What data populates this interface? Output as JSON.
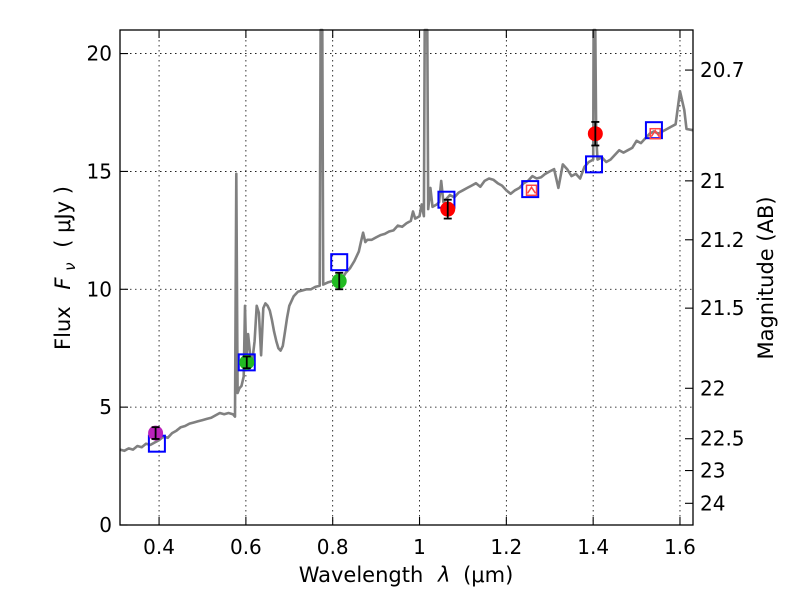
{
  "chart_data": {
    "type": "line",
    "xlabel": "Wavelength",
    "xlabel_symbol": "λ",
    "xlabel_unit": "(μm)",
    "ylabel": "Flux",
    "ylabel_symbol": "F",
    "ylabel_subscript": "ν",
    "ylabel_unit": "( μJy )",
    "y2label": "Magnitude (AB)",
    "xlim": [
      0.31,
      1.63
    ],
    "ylim": [
      0,
      21
    ],
    "xticks": [
      0.4,
      0.6,
      0.8,
      1.0,
      1.2,
      1.4,
      1.6
    ],
    "xtick_labels": [
      "0.4",
      "0.6",
      "0.8",
      "1",
      "1.2",
      "1.4",
      "1.6"
    ],
    "yticks": [
      0,
      5,
      10,
      15,
      20
    ],
    "ytick_labels": [
      "0",
      "5",
      "10",
      "15",
      "20"
    ],
    "y2ticks": [
      {
        "label": "20.7",
        "flux": 19.3
      },
      {
        "label": "21",
        "flux": 14.6
      },
      {
        "label": "21.2",
        "flux": 12.1
      },
      {
        "label": "21.5",
        "flux": 9.2
      },
      {
        "label": "22",
        "flux": 5.8
      },
      {
        "label": "22.5",
        "flux": 3.66
      },
      {
        "label": "23",
        "flux": 2.31
      },
      {
        "label": "24",
        "flux": 0.92
      }
    ],
    "grid": true,
    "colors": {
      "model": "#808080",
      "box": "#0000ff",
      "red_point": "#ff0000",
      "green_point": "#22bb22",
      "magenta_point": "#bb22bb",
      "errorbar": "#000000",
      "inner_box": "#ff4444"
    },
    "model_spectrum": [
      [
        0.31,
        3.2
      ],
      [
        0.32,
        3.15
      ],
      [
        0.33,
        3.25
      ],
      [
        0.34,
        3.2
      ],
      [
        0.35,
        3.35
      ],
      [
        0.36,
        3.3
      ],
      [
        0.37,
        3.45
      ],
      [
        0.38,
        3.4
      ],
      [
        0.39,
        3.5
      ],
      [
        0.4,
        3.6
      ],
      [
        0.41,
        3.75
      ],
      [
        0.42,
        3.7
      ],
      [
        0.43,
        3.9
      ],
      [
        0.44,
        4.0
      ],
      [
        0.45,
        4.15
      ],
      [
        0.46,
        4.2
      ],
      [
        0.47,
        4.3
      ],
      [
        0.48,
        4.35
      ],
      [
        0.49,
        4.4
      ],
      [
        0.5,
        4.45
      ],
      [
        0.51,
        4.5
      ],
      [
        0.52,
        4.55
      ],
      [
        0.53,
        4.65
      ],
      [
        0.54,
        4.75
      ],
      [
        0.55,
        4.7
      ],
      [
        0.56,
        4.75
      ],
      [
        0.57,
        4.7
      ],
      [
        0.575,
        4.6
      ],
      [
        0.578,
        14.9
      ],
      [
        0.581,
        5.6
      ],
      [
        0.585,
        5.8
      ],
      [
        0.59,
        5.9
      ],
      [
        0.595,
        6.3
      ],
      [
        0.598,
        9.3
      ],
      [
        0.601,
        7.0
      ],
      [
        0.605,
        8.1
      ],
      [
        0.61,
        7.2
      ],
      [
        0.615,
        7.0
      ],
      [
        0.62,
        7.8
      ],
      [
        0.625,
        9.3
      ],
      [
        0.63,
        9.0
      ],
      [
        0.635,
        7.2
      ],
      [
        0.64,
        9.2
      ],
      [
        0.645,
        9.4
      ],
      [
        0.65,
        9.3
      ],
      [
        0.655,
        9.1
      ],
      [
        0.66,
        8.7
      ],
      [
        0.665,
        8.2
      ],
      [
        0.67,
        7.8
      ],
      [
        0.675,
        7.5
      ],
      [
        0.68,
        7.4
      ],
      [
        0.685,
        7.6
      ],
      [
        0.69,
        8.2
      ],
      [
        0.695,
        8.8
      ],
      [
        0.7,
        9.3
      ],
      [
        0.71,
        9.7
      ],
      [
        0.72,
        9.9
      ],
      [
        0.73,
        9.95
      ],
      [
        0.74,
        10.0
      ],
      [
        0.75,
        10.0
      ],
      [
        0.76,
        10.1
      ],
      [
        0.77,
        10.15
      ],
      [
        0.772,
        21.0
      ],
      [
        0.776,
        21.0
      ],
      [
        0.778,
        10.2
      ],
      [
        0.79,
        10.3
      ],
      [
        0.8,
        10.35
      ],
      [
        0.81,
        10.3
      ],
      [
        0.82,
        10.4
      ],
      [
        0.83,
        10.7
      ],
      [
        0.84,
        10.9
      ],
      [
        0.85,
        11.2
      ],
      [
        0.86,
        11.6
      ],
      [
        0.865,
        12.0
      ],
      [
        0.87,
        12.4
      ],
      [
        0.875,
        12.0
      ],
      [
        0.88,
        12.1
      ],
      [
        0.89,
        12.1
      ],
      [
        0.9,
        12.2
      ],
      [
        0.91,
        12.3
      ],
      [
        0.92,
        12.35
      ],
      [
        0.93,
        12.45
      ],
      [
        0.94,
        12.5
      ],
      [
        0.95,
        12.7
      ],
      [
        0.96,
        12.65
      ],
      [
        0.97,
        12.8
      ],
      [
        0.98,
        12.9
      ],
      [
        0.985,
        13.3
      ],
      [
        0.99,
        13.0
      ],
      [
        1.0,
        13.1
      ],
      [
        1.005,
        13.6
      ],
      [
        1.01,
        13.1
      ],
      [
        1.012,
        21.0
      ],
      [
        1.018,
        21.0
      ],
      [
        1.02,
        13.4
      ],
      [
        1.025,
        14.3
      ],
      [
        1.03,
        13.5
      ],
      [
        1.04,
        13.6
      ],
      [
        1.045,
        13.7
      ],
      [
        1.05,
        14.6
      ],
      [
        1.055,
        13.7
      ],
      [
        1.06,
        13.8
      ],
      [
        1.07,
        14.0
      ],
      [
        1.08,
        13.9
      ],
      [
        1.09,
        14.1
      ],
      [
        1.1,
        14.2
      ],
      [
        1.11,
        14.3
      ],
      [
        1.12,
        14.4
      ],
      [
        1.13,
        14.5
      ],
      [
        1.14,
        14.35
      ],
      [
        1.15,
        14.6
      ],
      [
        1.16,
        14.7
      ],
      [
        1.17,
        14.65
      ],
      [
        1.18,
        14.5
      ],
      [
        1.19,
        14.4
      ],
      [
        1.2,
        14.2
      ],
      [
        1.21,
        14.05
      ],
      [
        1.22,
        14.2
      ],
      [
        1.23,
        14.3
      ],
      [
        1.24,
        14.5
      ],
      [
        1.25,
        14.6
      ],
      [
        1.26,
        14.8
      ],
      [
        1.27,
        14.7
      ],
      [
        1.28,
        14.75
      ],
      [
        1.29,
        14.9
      ],
      [
        1.3,
        15.0
      ],
      [
        1.31,
        15.1
      ],
      [
        1.32,
        14.3
      ],
      [
        1.33,
        15.3
      ],
      [
        1.34,
        15.1
      ],
      [
        1.35,
        14.8
      ],
      [
        1.36,
        14.9
      ],
      [
        1.37,
        14.7
      ],
      [
        1.38,
        15.2
      ],
      [
        1.39,
        15.4
      ],
      [
        1.4,
        15.5
      ],
      [
        1.401,
        21.0
      ],
      [
        1.405,
        21.0
      ],
      [
        1.407,
        16.5
      ],
      [
        1.41,
        15.5
      ],
      [
        1.42,
        15.6
      ],
      [
        1.43,
        15.4
      ],
      [
        1.44,
        15.5
      ],
      [
        1.45,
        15.7
      ],
      [
        1.46,
        15.9
      ],
      [
        1.47,
        15.8
      ],
      [
        1.48,
        15.9
      ],
      [
        1.49,
        16.0
      ],
      [
        1.5,
        16.3
      ],
      [
        1.51,
        16.2
      ],
      [
        1.52,
        16.4
      ],
      [
        1.53,
        16.6
      ],
      [
        1.54,
        16.7
      ],
      [
        1.55,
        16.6
      ],
      [
        1.56,
        16.7
      ],
      [
        1.57,
        16.8
      ],
      [
        1.58,
        16.9
      ],
      [
        1.59,
        17.0
      ],
      [
        1.6,
        18.4
      ],
      [
        1.61,
        17.6
      ],
      [
        1.615,
        16.8
      ],
      [
        1.63,
        16.75
      ]
    ],
    "model_boxes": [
      {
        "x": 0.395,
        "y": 3.45
      },
      {
        "x": 0.602,
        "y": 6.9
      },
      {
        "x": 0.815,
        "y": 11.15
      },
      {
        "x": 1.062,
        "y": 13.8
      },
      {
        "x": 1.255,
        "y": 14.25
      },
      {
        "x": 1.402,
        "y": 15.3
      },
      {
        "x": 1.54,
        "y": 16.75
      }
    ],
    "observed_points": [
      {
        "x": 0.392,
        "y": 3.9,
        "err": 0.25,
        "color": "magenta_point"
      },
      {
        "x": 0.602,
        "y": 6.9,
        "err": 0.25,
        "color": "green_point"
      },
      {
        "x": 0.815,
        "y": 10.35,
        "err": 0.35,
        "color": "green_point"
      },
      {
        "x": 1.065,
        "y": 13.4,
        "err": 0.4,
        "color": "red_point"
      },
      {
        "x": 1.405,
        "y": 16.6,
        "err": 0.5,
        "color": "red_point"
      }
    ],
    "limit_markers": [
      {
        "x": 1.258,
        "y": 14.2
      },
      {
        "x": 1.543,
        "y": 16.6
      }
    ]
  }
}
